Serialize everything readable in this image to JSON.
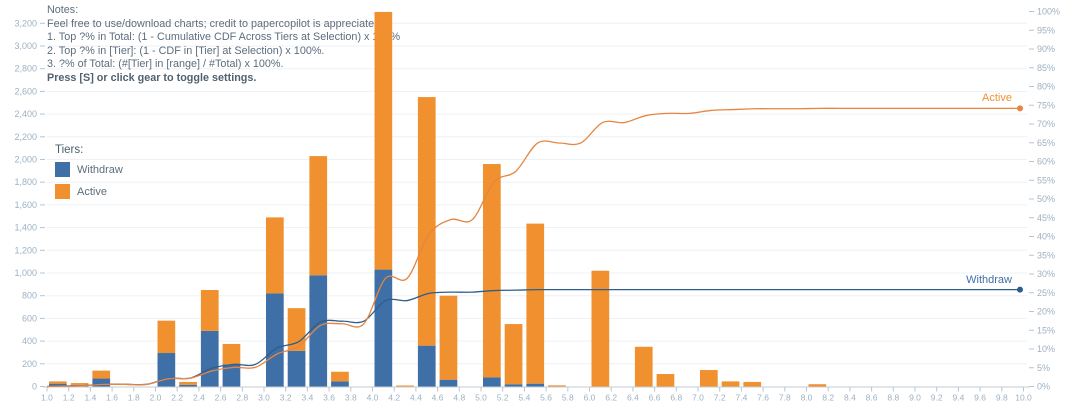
{
  "notes": {
    "lines": [
      "Notes:",
      "Feel free to use/download charts; credit to papercopilot is appreciated",
      "1. Top ?% in Total: (1 - Cumulative CDF Across Tiers at Selection) x 100%",
      "2. Top ?% in [Tier]: (1 - CDF in [Tier] at Selection) x 100%.",
      "3. ?% of Total: (#[Tier] in [range] / #Total) x 100%."
    ],
    "bold_line": "Press [S] or click gear to toggle settings."
  },
  "legend": {
    "title": "Tiers:",
    "items": [
      {
        "label": "Withdraw",
        "color": "#3e6fa7"
      },
      {
        "label": "Active",
        "color": "#f0902e"
      }
    ]
  },
  "line_labels": {
    "active": "Active",
    "withdraw": "Withdraw"
  },
  "chart_data": {
    "type": "bar",
    "subtype": "stacked-histogram-with-cumulative-cdf-lines",
    "bin_width": 0.2,
    "bin_starts": [
      1.0,
      1.2,
      1.4,
      1.6,
      1.8,
      2.0,
      2.2,
      2.4,
      2.6,
      2.8,
      3.0,
      3.2,
      3.4,
      3.6,
      3.8,
      4.0,
      4.2,
      4.4,
      4.6,
      4.8,
      5.0,
      5.2,
      5.4,
      5.6,
      5.8,
      6.0,
      6.2,
      6.4,
      6.6,
      6.8,
      7.0,
      7.2,
      7.4,
      7.6,
      7.8,
      8.0,
      8.2,
      8.4,
      8.6,
      8.8,
      9.0,
      9.2,
      9.4,
      9.6,
      9.8
    ],
    "series": [
      {
        "name": "Withdraw",
        "color": "#3e6fa7",
        "line_color": "#2e5e8c",
        "values": [
          25,
          15,
          70,
          0,
          0,
          295,
          15,
          490,
          195,
          0,
          820,
          315,
          980,
          45,
          0,
          1030,
          0,
          360,
          60,
          0,
          80,
          20,
          25,
          0,
          0,
          0,
          0,
          0,
          0,
          0,
          0,
          0,
          0,
          0,
          0,
          0,
          0,
          0,
          0,
          0,
          0,
          0,
          0,
          0,
          0
        ]
      },
      {
        "name": "Active",
        "color": "#f0902e",
        "line_color": "#e58540",
        "values": [
          20,
          15,
          70,
          0,
          0,
          285,
          25,
          360,
          180,
          0,
          670,
          375,
          1050,
          85,
          0,
          2270,
          5,
          2190,
          740,
          0,
          1880,
          530,
          1410,
          10,
          0,
          1020,
          0,
          350,
          110,
          0,
          145,
          45,
          40,
          0,
          0,
          20,
          0,
          0,
          0,
          0,
          0,
          0,
          0,
          0,
          0
        ]
      }
    ],
    "cdf_final_percent": {
      "Active": 74.2,
      "Withdraw": 25.8
    },
    "left_axis": {
      "ticks": [
        "0",
        "200",
        "400",
        "600",
        "800",
        "1,000",
        "1,200",
        "1,400",
        "1,600",
        "1,800",
        "2,000",
        "2,200",
        "2,400",
        "2,600",
        "2,800",
        "3,000",
        "3,200"
      ],
      "step": 200,
      "range": [
        0,
        3200
      ]
    },
    "right_axis": {
      "ticks": [
        "0%",
        "5%",
        "10%",
        "15%",
        "20%",
        "25%",
        "30%",
        "35%",
        "40%",
        "45%",
        "50%",
        "55%",
        "60%",
        "65%",
        "70%",
        "75%",
        "80%",
        "85%",
        "90%",
        "95%",
        "100%"
      ],
      "step": 5,
      "range": [
        0,
        100
      ]
    },
    "x_axis": {
      "ticks": [
        "1.0",
        "1.2",
        "1.4",
        "1.6",
        "1.8",
        "2.0",
        "2.2",
        "2.4",
        "2.6",
        "2.8",
        "3.0",
        "3.2",
        "3.4",
        "3.6",
        "3.8",
        "4.0",
        "4.2",
        "4.4",
        "4.6",
        "4.8",
        "5.0",
        "5.2",
        "5.4",
        "5.6",
        "5.8",
        "6.0",
        "6.2",
        "6.4",
        "6.6",
        "6.8",
        "7.0",
        "7.2",
        "7.4",
        "7.6",
        "7.8",
        "8.0",
        "8.2",
        "8.4",
        "8.6",
        "8.8",
        "9.0",
        "9.2",
        "9.4",
        "9.6",
        "9.8",
        "10.0"
      ],
      "range": [
        1.0,
        10.0
      ]
    },
    "grid": "horizontal",
    "legend_position": "left-middle",
    "colors": {
      "grid_line": "#eef1f5",
      "axis_line": "#c3ccd5",
      "tick_mark": "#b9c4cf",
      "axis_text": "#9db1c3"
    }
  }
}
